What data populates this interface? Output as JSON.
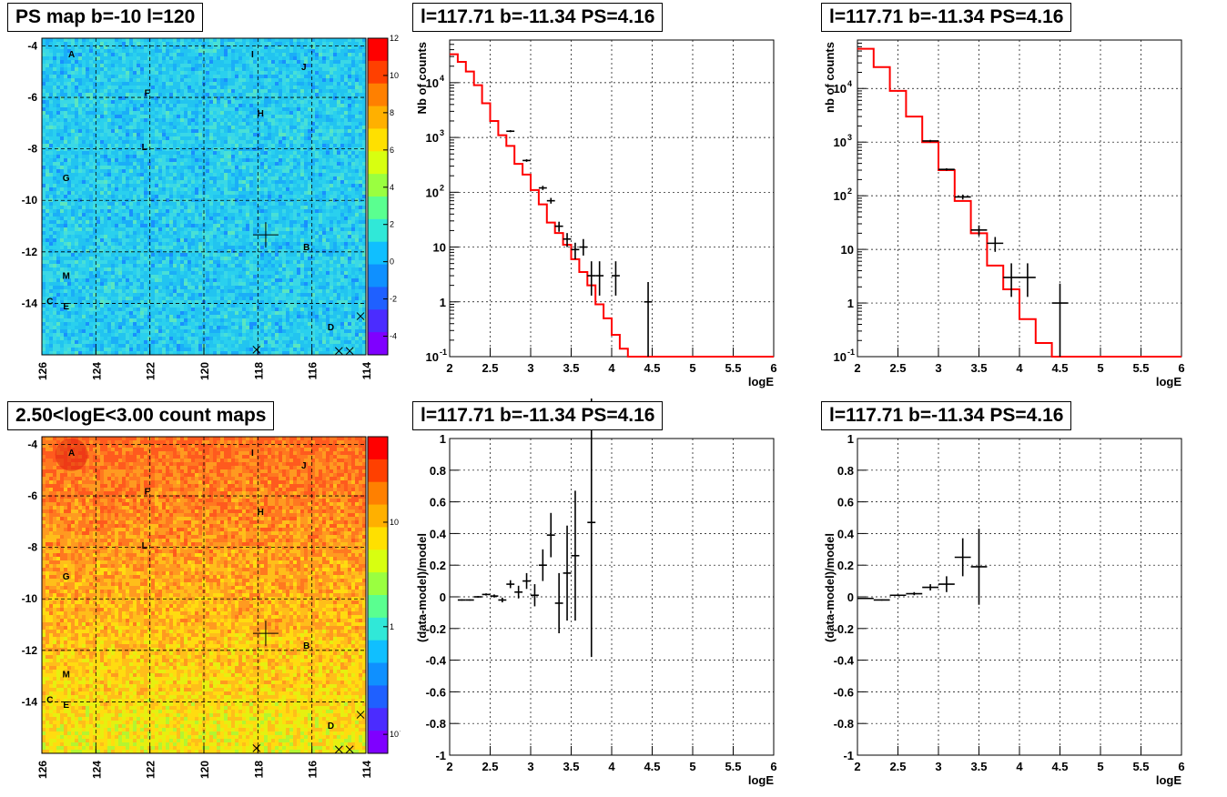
{
  "titles": {
    "map_top": "PS map b=-10 l=120",
    "map_bottom": "2.50<logE<3.00 count maps",
    "spec_mid": "l=117.71 b=-11.34 PS=4.16",
    "spec_right": "l=117.71 b=-11.34 PS=4.16",
    "res_mid": "l=117.71 b=-11.34 PS=4.16",
    "res_right": "l=117.71 b=-11.34 PS=4.16"
  },
  "colors": {
    "model_line": "#ff0000",
    "data_points": "#000000",
    "grid": "#000000",
    "map_top_bg": "#33ccee",
    "map_bottom_bg": "#ff7f20",
    "colorbar": [
      "#7f00ff",
      "#4b2cff",
      "#1f60ff",
      "#0f90ff",
      "#10bfff",
      "#30e8d8",
      "#5aff90",
      "#9aff40",
      "#d8ff10",
      "#ffe000",
      "#ffb000",
      "#ff8000",
      "#ff4000",
      "#ff0000"
    ]
  },
  "chart_data": [
    {
      "type": "heatmap",
      "title": "PS map b=-10 l=120",
      "x_ticks": [
        "126",
        "124",
        "122",
        "120",
        "118",
        "116",
        "114"
      ],
      "y_ticks": [
        "-4",
        "-6",
        "-8",
        "-10",
        "-12",
        "-14"
      ],
      "xlim": [
        126,
        114
      ],
      "ylim": [
        -16,
        -3.7
      ],
      "zlim": [
        -5,
        12
      ],
      "z_ticks": [
        "12",
        "10",
        "8",
        "6",
        "4",
        "2",
        "0",
        "-2",
        "-4"
      ],
      "z_scale": "linear",
      "sources": [
        {
          "label": "A",
          "l": 124.9,
          "b": -4.3
        },
        {
          "label": "I",
          "l": 118.2,
          "b": -4.3
        },
        {
          "label": "J",
          "l": 116.3,
          "b": -4.8
        },
        {
          "label": "F",
          "l": 122.1,
          "b": -5.8
        },
        {
          "label": "H",
          "l": 117.9,
          "b": -6.6
        },
        {
          "label": "L",
          "l": 122.2,
          "b": -7.9
        },
        {
          "label": "G",
          "l": 125.1,
          "b": -9.1
        },
        {
          "label": "B",
          "l": 116.2,
          "b": -11.8
        },
        {
          "label": "M",
          "l": 125.1,
          "b": -12.9
        },
        {
          "label": "C",
          "l": 125.7,
          "b": -13.9
        },
        {
          "label": "E",
          "l": 125.1,
          "b": -14.1
        },
        {
          "label": "D",
          "l": 115.3,
          "b": -14.9
        }
      ],
      "marker": {
        "l": 117.71,
        "b": -11.34
      }
    },
    {
      "type": "heatmap",
      "title": "2.50<logE<3.00 count maps",
      "x_ticks": [
        "126",
        "124",
        "122",
        "120",
        "118",
        "116",
        "114"
      ],
      "y_ticks": [
        "-4",
        "-6",
        "-8",
        "-10",
        "-12",
        "-14"
      ],
      "xlim": [
        126,
        114
      ],
      "ylim": [
        -16,
        -3.7
      ],
      "z_scale": "log",
      "z_ticks": [
        "10",
        "1",
        "10^-1"
      ],
      "marker": {
        "l": 117.71,
        "b": -11.34
      }
    },
    {
      "type": "line",
      "title": "l=117.71 b=-11.34 PS=4.16",
      "xlabel": "logE",
      "ylabel": "Nb of counts",
      "xlim": [
        2,
        6
      ],
      "ylim": [
        0.1,
        60000
      ],
      "yscale": "log",
      "x_ticks": [
        "2",
        "2.5",
        "3",
        "3.5",
        "4",
        "4.5",
        "5",
        "5.5",
        "6"
      ],
      "y_ticks": [
        {
          "v": 0.1,
          "t": "10",
          "sup": "-1"
        },
        {
          "v": 1,
          "t": "1",
          "sup": ""
        },
        {
          "v": 10,
          "t": "10",
          "sup": ""
        },
        {
          "v": 100,
          "t": "10",
          "sup": "2"
        },
        {
          "v": 1000,
          "t": "10",
          "sup": "3"
        },
        {
          "v": 10000,
          "t": "10",
          "sup": "4"
        }
      ],
      "model_steps": [
        {
          "x0": 2.0,
          "x1": 2.1,
          "y": 33000
        },
        {
          "x0": 2.1,
          "x1": 2.2,
          "y": 24000
        },
        {
          "x0": 2.2,
          "x1": 2.3,
          "y": 16000
        },
        {
          "x0": 2.3,
          "x1": 2.4,
          "y": 9000
        },
        {
          "x0": 2.4,
          "x1": 2.5,
          "y": 4200
        },
        {
          "x0": 2.5,
          "x1": 2.6,
          "y": 2000
        },
        {
          "x0": 2.6,
          "x1": 2.7,
          "y": 1100
        },
        {
          "x0": 2.7,
          "x1": 2.8,
          "y": 700
        },
        {
          "x0": 2.8,
          "x1": 2.9,
          "y": 330
        },
        {
          "x0": 2.9,
          "x1": 3.0,
          "y": 210
        },
        {
          "x0": 3.0,
          "x1": 3.1,
          "y": 110
        },
        {
          "x0": 3.1,
          "x1": 3.2,
          "y": 60
        },
        {
          "x0": 3.2,
          "x1": 3.3,
          "y": 28
        },
        {
          "x0": 3.3,
          "x1": 3.4,
          "y": 18
        },
        {
          "x0": 3.4,
          "x1": 3.5,
          "y": 11
        },
        {
          "x0": 3.5,
          "x1": 3.6,
          "y": 6
        },
        {
          "x0": 3.6,
          "x1": 3.7,
          "y": 3.5
        },
        {
          "x0": 3.7,
          "x1": 3.8,
          "y": 2
        },
        {
          "x0": 3.8,
          "x1": 3.9,
          "y": 0.9
        },
        {
          "x0": 3.9,
          "x1": 4.0,
          "y": 0.5
        },
        {
          "x0": 4.0,
          "x1": 4.1,
          "y": 0.25
        },
        {
          "x0": 4.1,
          "x1": 4.2,
          "y": 0.14
        },
        {
          "x0": 4.2,
          "x1": 6.0,
          "y": 0.1
        }
      ],
      "points": [
        {
          "x": 2.75,
          "y": 1300,
          "xe": 0.05,
          "ylo": 1250,
          "yhi": 1360
        },
        {
          "x": 2.95,
          "y": 380,
          "xe": 0.05,
          "ylo": 360,
          "yhi": 400
        },
        {
          "x": 3.15,
          "y": 120,
          "xe": 0.05,
          "ylo": 110,
          "yhi": 131
        },
        {
          "x": 3.25,
          "y": 70,
          "xe": 0.05,
          "ylo": 62,
          "yhi": 79
        },
        {
          "x": 3.35,
          "y": 24,
          "xe": 0.05,
          "ylo": 19,
          "yhi": 29
        },
        {
          "x": 3.45,
          "y": 14,
          "xe": 0.05,
          "ylo": 10,
          "yhi": 18
        },
        {
          "x": 3.55,
          "y": 9,
          "xe": 0.05,
          "ylo": 6,
          "yhi": 12
        },
        {
          "x": 3.65,
          "y": 10,
          "xe": 0.05,
          "ylo": 7,
          "yhi": 14
        },
        {
          "x": 3.75,
          "y": 3,
          "xe": 0.05,
          "ylo": 1.3,
          "yhi": 5.5
        },
        {
          "x": 3.85,
          "y": 3,
          "xe": 0.05,
          "ylo": 1.3,
          "yhi": 5.5
        },
        {
          "x": 4.05,
          "y": 3,
          "xe": 0.05,
          "ylo": 1.3,
          "yhi": 5.5
        },
        {
          "x": 4.45,
          "y": 1,
          "xe": 0.05,
          "ylo": 0.1,
          "yhi": 2.3
        }
      ]
    },
    {
      "type": "line",
      "title": "l=117.71 b=-11.34 PS=4.16",
      "xlabel": "logE",
      "ylabel": "nb of counts",
      "xlim": [
        2,
        6
      ],
      "ylim": [
        0.1,
        80000
      ],
      "yscale": "log",
      "x_ticks": [
        "2",
        "2.5",
        "3",
        "3.5",
        "4",
        "4.5",
        "5",
        "5.5",
        "6"
      ],
      "y_ticks": [
        {
          "v": 0.1,
          "t": "10",
          "sup": "-1"
        },
        {
          "v": 1,
          "t": "1",
          "sup": ""
        },
        {
          "v": 10,
          "t": "10",
          "sup": ""
        },
        {
          "v": 100,
          "t": "10",
          "sup": "2"
        },
        {
          "v": 1000,
          "t": "10",
          "sup": "3"
        },
        {
          "v": 10000,
          "t": "10",
          "sup": "4"
        }
      ],
      "model_steps": [
        {
          "x0": 2.0,
          "x1": 2.2,
          "y": 55000
        },
        {
          "x0": 2.2,
          "x1": 2.4,
          "y": 25000
        },
        {
          "x0": 2.4,
          "x1": 2.6,
          "y": 9000
        },
        {
          "x0": 2.6,
          "x1": 2.8,
          "y": 3000
        },
        {
          "x0": 2.8,
          "x1": 3.0,
          "y": 1000
        },
        {
          "x0": 3.0,
          "x1": 3.2,
          "y": 300
        },
        {
          "x0": 3.2,
          "x1": 3.4,
          "y": 80
        },
        {
          "x0": 3.4,
          "x1": 3.6,
          "y": 20
        },
        {
          "x0": 3.6,
          "x1": 3.8,
          "y": 5
        },
        {
          "x0": 3.8,
          "x1": 4.0,
          "y": 1.8
        },
        {
          "x0": 4.0,
          "x1": 4.2,
          "y": 0.5
        },
        {
          "x0": 4.2,
          "x1": 4.4,
          "y": 0.18
        },
        {
          "x0": 4.4,
          "x1": 6.0,
          "y": 0.1
        }
      ],
      "points": [
        {
          "x": 2.9,
          "y": 1050,
          "xe": 0.1,
          "ylo": 1000,
          "yhi": 1100
        },
        {
          "x": 3.1,
          "y": 310,
          "xe": 0.1,
          "ylo": 295,
          "yhi": 325
        },
        {
          "x": 3.3,
          "y": 95,
          "xe": 0.1,
          "ylo": 85,
          "yhi": 105
        },
        {
          "x": 3.5,
          "y": 23,
          "xe": 0.1,
          "ylo": 18,
          "yhi": 28
        },
        {
          "x": 3.7,
          "y": 13,
          "xe": 0.1,
          "ylo": 9,
          "yhi": 17
        },
        {
          "x": 3.9,
          "y": 3,
          "xe": 0.1,
          "ylo": 1.3,
          "yhi": 5.5
        },
        {
          "x": 4.1,
          "y": 3,
          "xe": 0.1,
          "ylo": 1.3,
          "yhi": 5.5
        },
        {
          "x": 4.5,
          "y": 1,
          "xe": 0.1,
          "ylo": 0.1,
          "yhi": 2.3
        }
      ]
    },
    {
      "type": "scatter",
      "title": "l=117.71 b=-11.34 PS=4.16",
      "xlabel": "logE",
      "ylabel": "(data-model)/model",
      "xlim": [
        2,
        6
      ],
      "ylim": [
        -1,
        1
      ],
      "x_ticks": [
        "2",
        "2.5",
        "3",
        "3.5",
        "4",
        "4.5",
        "5",
        "5.5",
        "6"
      ],
      "y_ticks": [
        "-1",
        "-0.8",
        "-0.6",
        "-0.4",
        "-0.2",
        "0",
        "0.2",
        "0.4",
        "0.6",
        "0.8",
        "1"
      ],
      "points": [
        {
          "x": 2.15,
          "y": -0.02,
          "xe": 0.05,
          "ye": 0.003
        },
        {
          "x": 2.25,
          "y": -0.02,
          "xe": 0.05,
          "ye": 0.004
        },
        {
          "x": 2.35,
          "y": 0.0,
          "xe": 0.05,
          "ye": 0.005
        },
        {
          "x": 2.45,
          "y": 0.015,
          "xe": 0.05,
          "ye": 0.007
        },
        {
          "x": 2.55,
          "y": 0.005,
          "xe": 0.05,
          "ye": 0.01
        },
        {
          "x": 2.65,
          "y": -0.02,
          "xe": 0.05,
          "ye": 0.015
        },
        {
          "x": 2.75,
          "y": 0.08,
          "xe": 0.05,
          "ye": 0.025
        },
        {
          "x": 2.85,
          "y": 0.03,
          "xe": 0.05,
          "ye": 0.04
        },
        {
          "x": 2.95,
          "y": 0.1,
          "xe": 0.05,
          "ye": 0.05
        },
        {
          "x": 3.05,
          "y": 0.01,
          "xe": 0.05,
          "ye": 0.07
        },
        {
          "x": 3.15,
          "y": 0.2,
          "xe": 0.05,
          "ye": 0.1
        },
        {
          "x": 3.25,
          "y": 0.39,
          "xe": 0.05,
          "ye": 0.14
        },
        {
          "x": 3.35,
          "y": -0.04,
          "xe": 0.05,
          "ye": 0.19
        },
        {
          "x": 3.45,
          "y": 0.15,
          "xe": 0.05,
          "ye": 0.3
        },
        {
          "x": 3.55,
          "y": 0.26,
          "xe": 0.05,
          "ye": 0.41
        },
        {
          "x": 3.75,
          "y": 0.47,
          "xe": 0.05,
          "ye": 0.85
        }
      ]
    },
    {
      "type": "scatter",
      "title": "l=117.71 b=-11.34 PS=4.16",
      "xlabel": "logE",
      "ylabel": "(data-model)/model",
      "xlim": [
        2,
        6
      ],
      "ylim": [
        -1,
        1
      ],
      "x_ticks": [
        "2",
        "2.5",
        "3",
        "3.5",
        "4",
        "4.5",
        "5",
        "5.5",
        "6"
      ],
      "y_ticks": [
        "-1",
        "-0.8",
        "-0.6",
        "-0.4",
        "-0.2",
        "0",
        "0.2",
        "0.4",
        "0.6",
        "0.8",
        "1"
      ],
      "points": [
        {
          "x": 2.1,
          "y": -0.01,
          "xe": 0.1,
          "ye": 0.003
        },
        {
          "x": 2.3,
          "y": -0.02,
          "xe": 0.1,
          "ye": 0.004
        },
        {
          "x": 2.5,
          "y": 0.01,
          "xe": 0.1,
          "ye": 0.006
        },
        {
          "x": 2.7,
          "y": 0.02,
          "xe": 0.1,
          "ye": 0.01
        },
        {
          "x": 2.9,
          "y": 0.06,
          "xe": 0.1,
          "ye": 0.02
        },
        {
          "x": 3.1,
          "y": 0.08,
          "xe": 0.1,
          "ye": 0.05
        },
        {
          "x": 3.3,
          "y": 0.25,
          "xe": 0.1,
          "ye": 0.12
        },
        {
          "x": 3.5,
          "y": 0.19,
          "xe": 0.1,
          "ye": 0.24
        }
      ]
    }
  ]
}
